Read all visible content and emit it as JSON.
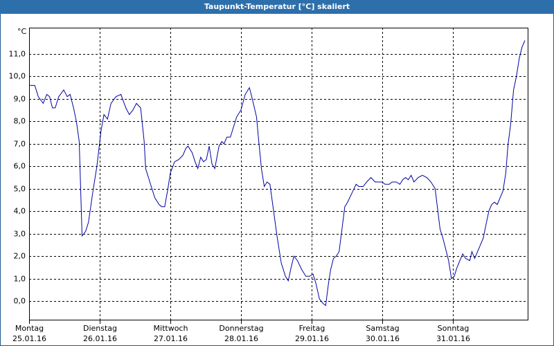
{
  "chart_data": {
    "type": "line",
    "title": "Taupunkt-Temperatur [°C] skaliert",
    "ylabel": "°C",
    "xlim": [
      0,
      7.06
    ],
    "ylim": [
      -0.83,
      12.17
    ],
    "xticks": [
      {
        "value": 0,
        "label": "Montag"
      },
      {
        "value": 1,
        "label": "Dienstag"
      },
      {
        "value": 2,
        "label": "Mittwoch"
      },
      {
        "value": 3,
        "label": "Donnerstag"
      },
      {
        "value": 4,
        "label": "Freitag"
      },
      {
        "value": 5,
        "label": "Samstag"
      },
      {
        "value": 6,
        "label": "Sonntag"
      }
    ],
    "xtick_dates": [
      "25.01.16",
      "26.01.16",
      "27.01.16",
      "28.01.16",
      "29.01.16",
      "30.01.16",
      "31.01.16"
    ],
    "yticks": [
      {
        "value": 0,
        "label": "0,0"
      },
      {
        "value": 1,
        "label": "1,0"
      },
      {
        "value": 2,
        "label": "2,0"
      },
      {
        "value": 3,
        "label": "3,0"
      },
      {
        "value": 4,
        "label": "4,0"
      },
      {
        "value": 5,
        "label": "5,0"
      },
      {
        "value": 6,
        "label": "6,0"
      },
      {
        "value": 7,
        "label": "7,0"
      },
      {
        "value": 8,
        "label": "8,0"
      },
      {
        "value": 9,
        "label": "9,0"
      },
      {
        "value": 10,
        "label": "10,0"
      },
      {
        "value": 11,
        "label": "11,0"
      }
    ],
    "grid": true,
    "series": [
      {
        "color": "#0000a0",
        "x": [
          0,
          0.08,
          0.13,
          0.2,
          0.25,
          0.29,
          0.33,
          0.37,
          0.42,
          0.49,
          0.54,
          0.58,
          0.63,
          0.67,
          0.71,
          0.75,
          0.8,
          0.84,
          0.9,
          0.96,
          1.02,
          1.06,
          1.11,
          1.16,
          1.23,
          1.3,
          1.37,
          1.42,
          1.47,
          1.52,
          1.58,
          1.63,
          1.65,
          1.69,
          1.73,
          1.78,
          1.84,
          1.88,
          1.92,
          1.96,
          2.0,
          2.06,
          2.12,
          2.18,
          2.22,
          2.25,
          2.31,
          2.35,
          2.39,
          2.43,
          2.47,
          2.51,
          2.55,
          2.59,
          2.63,
          2.69,
          2.73,
          2.76,
          2.8,
          2.85,
          2.89,
          2.94,
          3.0,
          3.06,
          3.12,
          3.16,
          3.22,
          3.25,
          3.29,
          3.33,
          3.37,
          3.41,
          3.45,
          3.51,
          3.57,
          3.63,
          3.67,
          3.71,
          3.75,
          3.8,
          3.86,
          3.92,
          3.97,
          4.02,
          4.06,
          4.11,
          4.16,
          4.2,
          4.24,
          4.27,
          4.31,
          4.35,
          4.39,
          4.43,
          4.47,
          4.51,
          4.57,
          4.63,
          4.67,
          4.73,
          4.78,
          4.84,
          4.9,
          4.96,
          5.0,
          5.04,
          5.1,
          5.14,
          5.2,
          5.25,
          5.29,
          5.33,
          5.37,
          5.41,
          5.45,
          5.51,
          5.57,
          5.63,
          5.69,
          5.75,
          5.78,
          5.82,
          5.86,
          5.9,
          5.94,
          5.98,
          6.02,
          6.06,
          6.1,
          6.14,
          6.18,
          6.24,
          6.27,
          6.31,
          6.35,
          6.39,
          6.43,
          6.47,
          6.51,
          6.55,
          6.59,
          6.63,
          6.67,
          6.71,
          6.75,
          6.78,
          6.82,
          6.86,
          6.9,
          6.94,
          6.98,
          7.02
        ],
        "values": [
          9.6,
          9.6,
          9.1,
          8.8,
          9.2,
          9.1,
          8.6,
          8.6,
          9.1,
          9.4,
          9.1,
          9.2,
          8.6,
          8.0,
          7.1,
          2.9,
          3.1,
          3.5,
          4.8,
          6.0,
          7.6,
          8.3,
          8.1,
          8.8,
          9.1,
          9.2,
          8.6,
          8.3,
          8.5,
          8.8,
          8.6,
          7.1,
          5.9,
          5.5,
          5.1,
          4.6,
          4.3,
          4.2,
          4.2,
          4.9,
          5.7,
          6.2,
          6.3,
          6.5,
          6.8,
          6.9,
          6.6,
          6.2,
          5.9,
          6.4,
          6.2,
          6.3,
          6.9,
          6.1,
          5.9,
          6.9,
          7.1,
          7.0,
          7.3,
          7.3,
          7.7,
          8.2,
          8.5,
          9.2,
          9.5,
          9.0,
          8.2,
          7.2,
          5.9,
          5.1,
          5.3,
          5.2,
          4.3,
          2.9,
          1.7,
          1.1,
          0.9,
          1.5,
          2.0,
          1.8,
          1.4,
          1.1,
          1.1,
          1.2,
          0.8,
          0.1,
          -0.1,
          -0.2,
          0.8,
          1.4,
          1.9,
          2.0,
          2.2,
          3.2,
          4.2,
          4.4,
          4.8,
          5.2,
          5.1,
          5.1,
          5.3,
          5.5,
          5.3,
          5.3,
          5.3,
          5.2,
          5.2,
          5.3,
          5.3,
          5.2,
          5.4,
          5.5,
          5.4,
          5.6,
          5.3,
          5.5,
          5.6,
          5.5,
          5.3,
          5.0,
          4.2,
          3.2,
          2.8,
          2.3,
          1.8,
          1.0,
          1.1,
          1.5,
          1.8,
          2.1,
          1.9,
          1.8,
          2.2,
          1.9,
          2.2,
          2.5,
          2.8,
          3.4,
          4.0,
          4.3,
          4.4,
          4.3,
          4.6,
          4.9,
          5.7,
          6.9,
          7.9,
          9.4,
          10.0,
          10.8,
          11.3,
          11.6
        ]
      }
    ]
  }
}
